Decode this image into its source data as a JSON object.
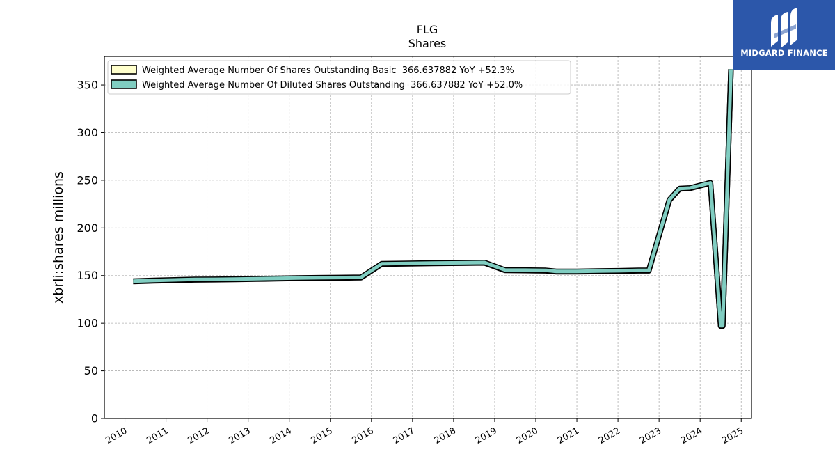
{
  "chart_data": {
    "type": "line",
    "title": "FLG",
    "subtitle": "Shares",
    "ylabel": "xbrli:shares millions",
    "xlabel": "",
    "xlim": [
      2009.5,
      2025.25
    ],
    "ylim": [
      0,
      380
    ],
    "x_ticks": [
      "2010",
      "2011",
      "2012",
      "2013",
      "2014",
      "2015",
      "2016",
      "2017",
      "2018",
      "2019",
      "2020",
      "2021",
      "2022",
      "2023",
      "2024",
      "2025"
    ],
    "y_ticks": [
      0,
      50,
      100,
      150,
      200,
      250,
      300,
      350
    ],
    "grid": true,
    "legend_position": "top-left",
    "x": [
      2010.2,
      2010.7,
      2011.2,
      2011.7,
      2012.2,
      2012.7,
      2013.2,
      2013.7,
      2014.2,
      2014.7,
      2015.2,
      2015.75,
      2016.25,
      2016.75,
      2017.5,
      2018.2,
      2018.75,
      2019.25,
      2019.75,
      2020.25,
      2020.5,
      2021.0,
      2021.5,
      2022.0,
      2022.5,
      2022.75,
      2023.25,
      2023.5,
      2023.75,
      2024.25,
      2024.5,
      2024.55,
      2024.75
    ],
    "series": [
      {
        "name": "Weighted Average Number Of Shares Outstanding Basic  366.637882 YoY +52.3%",
        "color": "#ffffcc",
        "values": [
          143.8,
          144.5,
          145,
          145.5,
          145.7,
          146,
          146.3,
          146.7,
          147,
          147.3,
          147.5,
          147.8,
          162,
          162.3,
          162.8,
          163,
          163.3,
          155.5,
          155.3,
          155,
          154,
          154,
          154.3,
          154.6,
          155,
          155,
          229,
          241,
          241.5,
          247,
          97,
          97,
          366.6
        ]
      },
      {
        "name": "Weighted Average Number Of Diluted Shares Outstanding  366.637882 YoY +52.0%",
        "color": "#80cdc1",
        "values": [
          144.2,
          144.9,
          145.4,
          145.9,
          146.1,
          146.4,
          146.7,
          147.1,
          147.4,
          147.7,
          147.9,
          148.2,
          162.4,
          162.7,
          163.2,
          163.4,
          163.7,
          155.9,
          155.7,
          155.4,
          154.4,
          154.4,
          154.7,
          155,
          155.4,
          155.4,
          229.4,
          241.4,
          241.9,
          247.4,
          97.4,
          97.4,
          366.6
        ]
      }
    ]
  },
  "logo": {
    "text": "MIDGARD FINANCE",
    "background": "#2c57aa"
  }
}
